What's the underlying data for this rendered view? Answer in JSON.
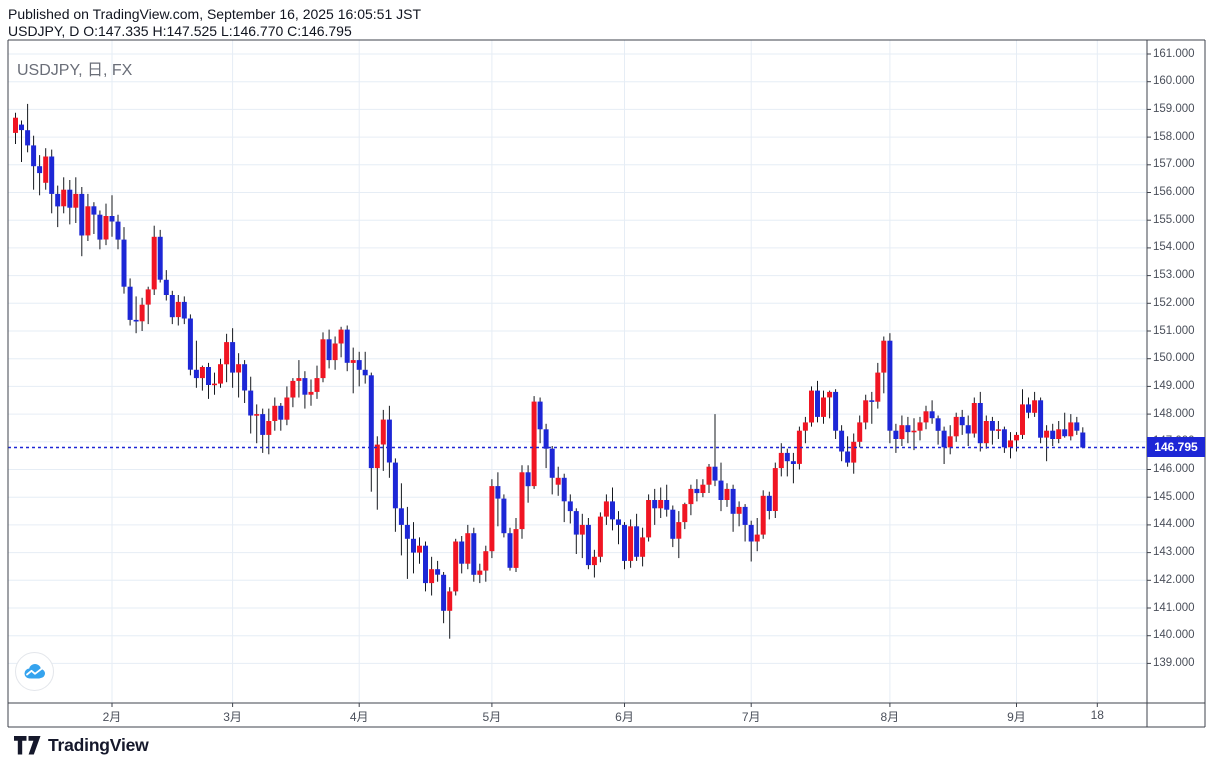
{
  "header": {
    "published_line": "Published on TradingView.com, September 16, 2025 16:05:51 JST",
    "ohlc_line": "USDJPY, D O:147.335 H:147.525 L:146.770 C:146.795"
  },
  "legend": {
    "text": "USDJPY, 日, FX"
  },
  "price_axis": {
    "labels": [
      "161.000",
      "160.000",
      "159.000",
      "158.000",
      "157.000",
      "156.000",
      "155.000",
      "154.000",
      "153.000",
      "152.000",
      "151.000",
      "150.000",
      "149.000",
      "148.000",
      "147.000",
      "146.000",
      "145.000",
      "144.000",
      "143.000",
      "142.000",
      "141.000",
      "140.000",
      "139.000"
    ],
    "current_price_label": "146.795"
  },
  "time_axis": {
    "ticks": [
      {
        "label": "2月",
        "i": 16
      },
      {
        "label": "3月",
        "i": 36
      },
      {
        "label": "4月",
        "i": 57
      },
      {
        "label": "5月",
        "i": 79
      },
      {
        "label": "6月",
        "i": 101
      },
      {
        "label": "7月",
        "i": 122
      },
      {
        "label": "8月",
        "i": 145
      },
      {
        "label": "9月",
        "i": 166
      },
      {
        "label": "18",
        "i": 179.4
      }
    ]
  },
  "footer": {
    "brand": "TradingView"
  },
  "watermark": {
    "icon": "tradingview-area-chart-logo"
  },
  "colors": {
    "up": "#f01523",
    "down": "#1d27d6",
    "wick": "#15181e",
    "grid": "#e6edf5",
    "frame": "#3f434c",
    "badge_bg": "#1d27d6",
    "price_line": "#1d27d6",
    "header_text": "#10141f",
    "axis_text": "#4a4f5a",
    "watermark_blue": "#35a3ee"
  },
  "chart_data": {
    "type": "candlestick",
    "symbol": "USDJPY",
    "timeframe": "D",
    "exchange": "FX",
    "ylim": [
      139,
      161
    ],
    "current_price": 146.795,
    "last_ohlc": {
      "open": 147.335,
      "high": 147.525,
      "low": 146.77,
      "close": 146.795
    },
    "dates": [
      "1/10",
      "1/13",
      "1/14",
      "1/15",
      "1/16",
      "1/17",
      "1/20",
      "1/21",
      "1/22",
      "1/23",
      "1/24",
      "1/27",
      "1/28",
      "1/29",
      "1/30",
      "1/31",
      "2/3",
      "2/4",
      "2/5",
      "2/6",
      "2/7",
      "2/10",
      "2/11",
      "2/12",
      "2/13",
      "2/14",
      "2/17",
      "2/18",
      "2/19",
      "2/20",
      "2/21",
      "2/24",
      "2/25",
      "2/26",
      "2/27",
      "2/28",
      "3/3",
      "3/4",
      "3/5",
      "3/6",
      "3/7",
      "3/10",
      "3/11",
      "3/12",
      "3/13",
      "3/14",
      "3/17",
      "3/18",
      "3/19",
      "3/20",
      "3/21",
      "3/24",
      "3/25",
      "3/26",
      "3/27",
      "3/28",
      "3/31",
      "4/1",
      "4/2",
      "4/3",
      "4/4",
      "4/7",
      "4/8",
      "4/9",
      "4/10",
      "4/11",
      "4/14",
      "4/15",
      "4/16",
      "4/17",
      "4/18",
      "4/21",
      "4/22",
      "4/23",
      "4/24",
      "4/25",
      "4/28",
      "4/29",
      "4/30",
      "5/1",
      "5/2",
      "5/5",
      "5/6",
      "5/7",
      "5/8",
      "5/9",
      "5/12",
      "5/13",
      "5/14",
      "5/15",
      "5/16",
      "5/19",
      "5/20",
      "5/21",
      "5/22",
      "5/23",
      "5/26",
      "5/27",
      "5/28",
      "5/29",
      "5/30",
      "6/2",
      "6/3",
      "6/4",
      "6/5",
      "6/6",
      "6/9",
      "6/10",
      "6/11",
      "6/12",
      "6/13",
      "6/16",
      "6/17",
      "6/18",
      "6/19",
      "6/20",
      "6/23",
      "6/24",
      "6/25",
      "6/26",
      "6/27",
      "6/30",
      "7/1",
      "7/2",
      "7/3",
      "7/4",
      "7/7",
      "7/8",
      "7/9",
      "7/10",
      "7/11",
      "7/14",
      "7/15",
      "7/16",
      "7/17",
      "7/18",
      "7/21",
      "7/22",
      "7/23",
      "7/24",
      "7/25",
      "7/28",
      "7/29",
      "7/30",
      "7/31",
      "8/1",
      "8/4",
      "8/5",
      "8/6",
      "8/7",
      "8/8",
      "8/11",
      "8/12",
      "8/13",
      "8/14",
      "8/15",
      "8/18",
      "8/19",
      "8/20",
      "8/21",
      "8/22",
      "8/25",
      "8/26",
      "8/27",
      "8/28",
      "8/29",
      "9/1",
      "9/2",
      "9/3",
      "9/4",
      "9/5",
      "9/8",
      "9/9",
      "9/10",
      "9/11",
      "9/12",
      "9/15",
      "9/16"
    ],
    "ohlc": [
      [
        158.15,
        158.88,
        157.75,
        158.7
      ],
      [
        158.45,
        158.6,
        157.1,
        158.25
      ],
      [
        158.25,
        159.2,
        157.45,
        157.7
      ],
      [
        157.7,
        158.05,
        156.1,
        156.95
      ],
      [
        156.95,
        157.35,
        155.9,
        156.7
      ],
      [
        156.35,
        157.6,
        156.1,
        157.3
      ],
      [
        157.3,
        157.55,
        155.25,
        155.95
      ],
      [
        155.95,
        156.25,
        154.75,
        155.5
      ],
      [
        155.5,
        156.55,
        155.25,
        156.1
      ],
      [
        156.1,
        156.45,
        154.85,
        155.45
      ],
      [
        155.45,
        156.55,
        154.9,
        155.95
      ],
      [
        155.95,
        156.2,
        153.7,
        154.45
      ],
      [
        154.45,
        155.95,
        154.25,
        155.5
      ],
      [
        155.5,
        155.65,
        154.5,
        155.2
      ],
      [
        155.2,
        155.35,
        153.95,
        154.3
      ],
      [
        154.3,
        155.6,
        154.1,
        155.15
      ],
      [
        155.15,
        155.9,
        154.4,
        154.95
      ],
      [
        154.95,
        155.2,
        153.95,
        154.3
      ],
      [
        154.3,
        154.75,
        152.35,
        152.6
      ],
      [
        152.6,
        152.9,
        151.2,
        151.4
      ],
      [
        151.4,
        152.25,
        150.92,
        151.35
      ],
      [
        151.35,
        152.2,
        151.0,
        151.95
      ],
      [
        151.95,
        152.6,
        151.25,
        152.5
      ],
      [
        152.5,
        154.8,
        152.3,
        154.4
      ],
      [
        154.4,
        154.65,
        152.75,
        152.85
      ],
      [
        152.85,
        153.2,
        152.1,
        152.3
      ],
      [
        152.3,
        152.45,
        151.25,
        151.5
      ],
      [
        151.5,
        152.3,
        151.2,
        152.05
      ],
      [
        152.05,
        152.25,
        151.25,
        151.45
      ],
      [
        151.45,
        151.6,
        149.4,
        149.6
      ],
      [
        149.6,
        150.65,
        148.95,
        149.3
      ],
      [
        149.3,
        149.75,
        148.85,
        149.7
      ],
      [
        149.7,
        149.85,
        148.55,
        149.05
      ],
      [
        149.05,
        149.5,
        148.7,
        149.1
      ],
      [
        149.1,
        150.0,
        148.95,
        149.8
      ],
      [
        149.8,
        150.9,
        149.15,
        150.6
      ],
      [
        150.6,
        151.1,
        148.95,
        149.5
      ],
      [
        149.5,
        150.2,
        148.6,
        149.8
      ],
      [
        149.8,
        149.95,
        148.4,
        148.85
      ],
      [
        148.85,
        149.35,
        147.3,
        147.95
      ],
      [
        147.95,
        148.35,
        146.95,
        148.0
      ],
      [
        148.0,
        148.2,
        146.6,
        147.25
      ],
      [
        147.25,
        148.2,
        146.55,
        147.75
      ],
      [
        147.75,
        148.6,
        147.4,
        148.3
      ],
      [
        148.3,
        148.4,
        147.4,
        147.8
      ],
      [
        147.8,
        149.0,
        147.6,
        148.6
      ],
      [
        148.6,
        149.3,
        148.25,
        149.2
      ],
      [
        149.2,
        149.95,
        148.6,
        149.3
      ],
      [
        149.3,
        149.55,
        148.2,
        148.7
      ],
      [
        148.7,
        149.25,
        148.3,
        148.8
      ],
      [
        148.8,
        149.75,
        148.55,
        149.3
      ],
      [
        149.3,
        150.95,
        149.15,
        150.7
      ],
      [
        150.7,
        151.05,
        149.65,
        149.95
      ],
      [
        149.95,
        150.8,
        149.6,
        150.55
      ],
      [
        150.55,
        151.15,
        150.05,
        151.05
      ],
      [
        151.05,
        151.2,
        149.55,
        149.85
      ],
      [
        149.85,
        150.4,
        148.75,
        149.95
      ],
      [
        149.95,
        150.25,
        149.0,
        149.6
      ],
      [
        149.6,
        150.25,
        149.1,
        149.4
      ],
      [
        149.4,
        149.5,
        145.2,
        146.05
      ],
      [
        146.05,
        147.2,
        144.55,
        146.9
      ],
      [
        146.9,
        148.15,
        145.95,
        147.8
      ],
      [
        147.8,
        148.3,
        145.7,
        146.25
      ],
      [
        146.25,
        146.4,
        143.75,
        144.6
      ],
      [
        144.6,
        145.5,
        142.9,
        144.0
      ],
      [
        144.0,
        144.65,
        142.05,
        143.5
      ],
      [
        143.5,
        144.1,
        142.25,
        143.0
      ],
      [
        143.0,
        143.55,
        142.6,
        143.25
      ],
      [
        143.25,
        143.4,
        141.6,
        141.9
      ],
      [
        141.9,
        142.85,
        141.45,
        142.4
      ],
      [
        142.4,
        142.7,
        141.95,
        142.2
      ],
      [
        142.2,
        142.3,
        140.45,
        140.9
      ],
      [
        140.9,
        141.75,
        139.89,
        141.6
      ],
      [
        141.6,
        143.5,
        141.45,
        143.4
      ],
      [
        143.4,
        143.6,
        142.25,
        142.6
      ],
      [
        142.6,
        144.0,
        142.4,
        143.7
      ],
      [
        143.7,
        143.9,
        141.95,
        142.2
      ],
      [
        142.2,
        142.6,
        141.9,
        142.35
      ],
      [
        142.35,
        143.25,
        141.95,
        143.05
      ],
      [
        143.05,
        145.65,
        142.8,
        145.4
      ],
      [
        145.4,
        145.9,
        143.95,
        144.95
      ],
      [
        144.95,
        145.1,
        143.55,
        143.7
      ],
      [
        143.7,
        143.9,
        142.35,
        142.45
      ],
      [
        142.45,
        144.25,
        142.3,
        143.85
      ],
      [
        143.85,
        146.15,
        143.5,
        145.9
      ],
      [
        145.9,
        146.15,
        144.8,
        145.4
      ],
      [
        145.4,
        148.65,
        145.3,
        148.45
      ],
      [
        148.45,
        148.6,
        146.95,
        147.45
      ],
      [
        147.45,
        147.65,
        146.05,
        146.75
      ],
      [
        146.75,
        146.85,
        145.1,
        145.7
      ],
      [
        145.45,
        146.1,
        145.05,
        145.7
      ],
      [
        145.7,
        145.85,
        144.1,
        144.85
      ],
      [
        144.85,
        145.1,
        144.05,
        144.5
      ],
      [
        144.5,
        144.6,
        142.95,
        143.65
      ],
      [
        143.65,
        144.4,
        142.8,
        144.0
      ],
      [
        144.0,
        144.25,
        142.4,
        142.55
      ],
      [
        142.55,
        143.1,
        142.1,
        142.85
      ],
      [
        142.85,
        144.45,
        142.65,
        144.3
      ],
      [
        144.3,
        145.1,
        144.0,
        144.85
      ],
      [
        144.85,
        145.35,
        143.8,
        144.2
      ],
      [
        144.2,
        144.5,
        143.3,
        144.0
      ],
      [
        144.0,
        144.1,
        142.4,
        142.7
      ],
      [
        142.7,
        144.2,
        142.45,
        143.95
      ],
      [
        143.95,
        144.4,
        142.7,
        142.85
      ],
      [
        142.85,
        143.9,
        142.5,
        143.55
      ],
      [
        143.55,
        145.1,
        143.4,
        144.9
      ],
      [
        144.9,
        145.3,
        144.0,
        144.6
      ],
      [
        144.6,
        145.35,
        144.25,
        144.9
      ],
      [
        144.9,
        145.45,
        144.3,
        144.55
      ],
      [
        144.55,
        144.7,
        143.2,
        143.5
      ],
      [
        143.5,
        144.5,
        142.8,
        144.1
      ],
      [
        144.1,
        144.8,
        143.85,
        144.75
      ],
      [
        144.75,
        145.45,
        144.35,
        145.3
      ],
      [
        145.3,
        145.65,
        144.85,
        145.15
      ],
      [
        145.15,
        145.65,
        145.0,
        145.45
      ],
      [
        145.45,
        146.2,
        145.15,
        146.1
      ],
      [
        146.1,
        148.0,
        145.4,
        145.6
      ],
      [
        145.6,
        146.25,
        144.5,
        144.9
      ],
      [
        144.9,
        145.5,
        144.65,
        145.3
      ],
      [
        145.3,
        145.45,
        143.75,
        144.4
      ],
      [
        144.4,
        144.85,
        143.95,
        144.65
      ],
      [
        144.65,
        144.75,
        143.4,
        144.0
      ],
      [
        144.0,
        144.15,
        142.68,
        143.4
      ],
      [
        143.4,
        144.25,
        143.05,
        143.65
      ],
      [
        143.65,
        145.25,
        143.5,
        145.05
      ],
      [
        145.05,
        145.2,
        144.2,
        144.5
      ],
      [
        144.5,
        146.25,
        144.25,
        146.05
      ],
      [
        146.05,
        146.95,
        145.75,
        146.6
      ],
      [
        146.6,
        146.75,
        145.75,
        146.3
      ],
      [
        146.3,
        146.6,
        145.5,
        146.2
      ],
      [
        146.2,
        147.55,
        146.0,
        147.4
      ],
      [
        147.4,
        147.9,
        146.95,
        147.7
      ],
      [
        147.7,
        149.0,
        147.55,
        148.85
      ],
      [
        148.85,
        149.2,
        147.7,
        147.9
      ],
      [
        147.9,
        148.85,
        147.65,
        148.6
      ],
      [
        148.6,
        148.85,
        147.85,
        148.8
      ],
      [
        148.8,
        148.9,
        147.1,
        147.4
      ],
      [
        147.4,
        147.6,
        146.3,
        146.65
      ],
      [
        146.65,
        147.2,
        146.1,
        146.25
      ],
      [
        146.25,
        147.3,
        145.85,
        147.0
      ],
      [
        147.0,
        147.95,
        146.8,
        147.7
      ],
      [
        147.7,
        148.7,
        147.45,
        148.5
      ],
      [
        148.5,
        148.8,
        147.65,
        148.45
      ],
      [
        148.45,
        149.85,
        148.2,
        149.5
      ],
      [
        149.5,
        150.8,
        148.75,
        150.65
      ],
      [
        150.65,
        150.92,
        146.95,
        147.4
      ],
      [
        147.4,
        147.65,
        146.6,
        147.1
      ],
      [
        147.1,
        147.95,
        146.85,
        147.6
      ],
      [
        147.6,
        147.9,
        146.95,
        147.35
      ],
      [
        147.35,
        147.85,
        146.7,
        147.4
      ],
      [
        147.4,
        147.9,
        147.05,
        147.7
      ],
      [
        147.7,
        148.3,
        147.45,
        148.1
      ],
      [
        148.1,
        148.5,
        147.65,
        147.85
      ],
      [
        147.85,
        147.95,
        146.9,
        147.4
      ],
      [
        147.4,
        147.55,
        146.2,
        146.8
      ],
      [
        146.8,
        147.6,
        146.55,
        147.2
      ],
      [
        147.2,
        148.05,
        147.0,
        147.9
      ],
      [
        147.9,
        148.15,
        147.25,
        147.6
      ],
      [
        147.6,
        147.95,
        146.85,
        147.3
      ],
      [
        147.3,
        148.6,
        147.15,
        148.4
      ],
      [
        148.4,
        148.8,
        146.65,
        146.95
      ],
      [
        146.95,
        147.95,
        146.75,
        147.75
      ],
      [
        147.75,
        147.9,
        146.9,
        147.4
      ],
      [
        147.4,
        147.75,
        147.1,
        147.45
      ],
      [
        147.45,
        147.55,
        146.6,
        146.8
      ],
      [
        146.8,
        147.35,
        146.4,
        147.05
      ],
      [
        147.05,
        147.35,
        146.65,
        147.25
      ],
      [
        147.25,
        148.9,
        147.1,
        148.35
      ],
      [
        148.35,
        148.6,
        147.85,
        148.05
      ],
      [
        148.05,
        148.8,
        147.9,
        148.5
      ],
      [
        148.5,
        148.6,
        146.95,
        147.15
      ],
      [
        147.15,
        147.6,
        146.3,
        147.4
      ],
      [
        147.4,
        147.65,
        146.85,
        147.1
      ],
      [
        147.1,
        147.75,
        146.95,
        147.45
      ],
      [
        147.45,
        148.05,
        147.15,
        147.2
      ],
      [
        147.2,
        148.0,
        147.05,
        147.7
      ],
      [
        147.7,
        147.9,
        147.25,
        147.4
      ],
      [
        147.335,
        147.525,
        146.77,
        146.795
      ]
    ]
  }
}
